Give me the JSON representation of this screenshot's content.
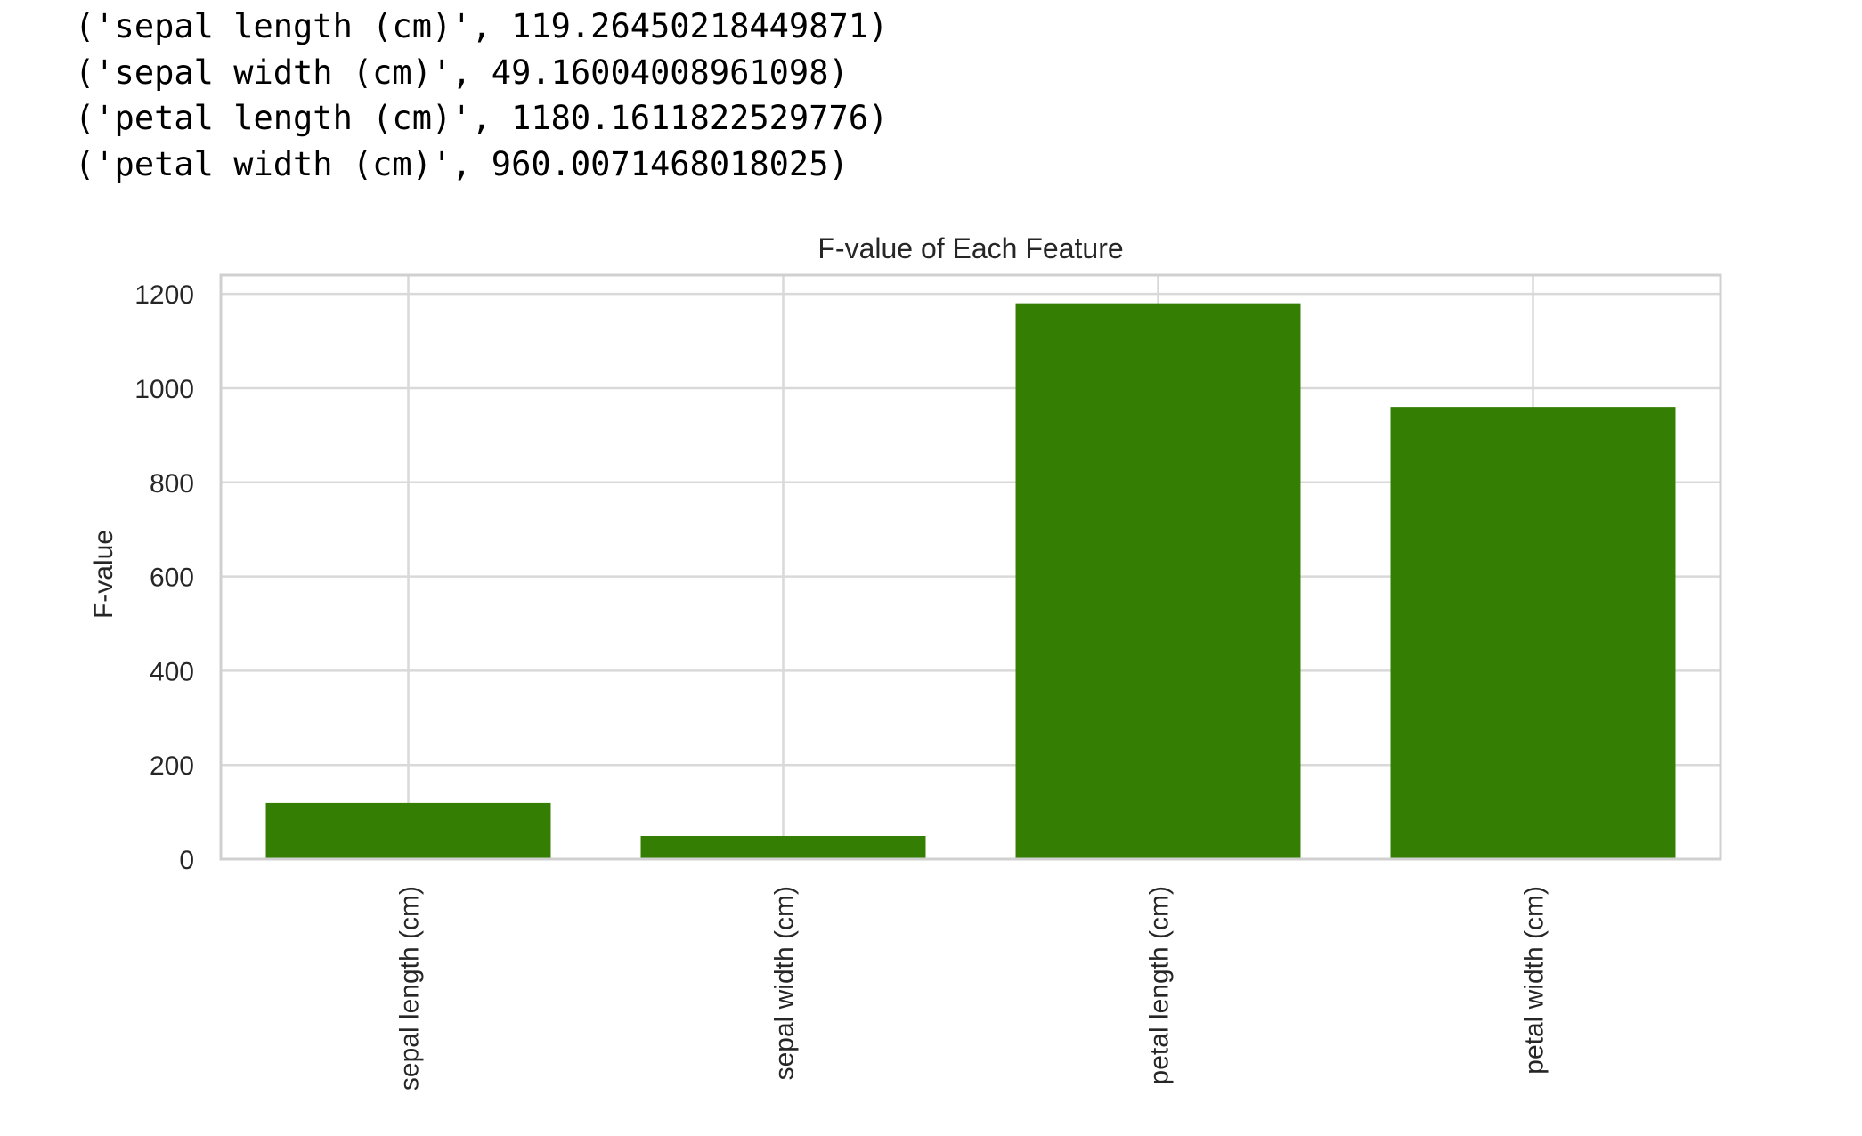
{
  "output_lines": [
    "('sepal length (cm)', 119.26450218449871)",
    "('sepal width (cm)', 49.16004008961098)",
    "('petal length (cm)', 1180.1611822529776)",
    "('petal width (cm)', 960.0071468018025)"
  ],
  "chart_data": {
    "type": "bar",
    "title": "F-value of Each Feature",
    "xlabel": "",
    "ylabel": "F-value",
    "categories": [
      "sepal length (cm)",
      "sepal width (cm)",
      "petal length (cm)",
      "petal width (cm)"
    ],
    "values": [
      119.26450218449871,
      49.16004008961098,
      1180.1611822529776,
      960.0071468018025
    ],
    "ylim": [
      0,
      1240
    ],
    "yticks": [
      0,
      200,
      400,
      600,
      800,
      1000,
      1200
    ],
    "grid": true,
    "bar_color": "#347f03",
    "grid_color": "#d9d9d9",
    "frame_color": "#d0d0d0"
  }
}
